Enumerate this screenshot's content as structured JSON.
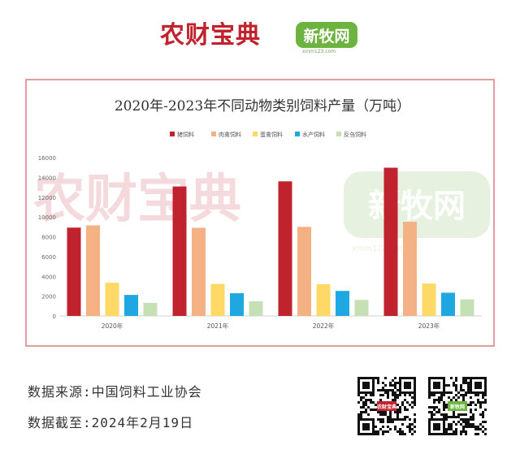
{
  "header": {
    "brand_left": "农财宝典",
    "brand_right": "新牧网",
    "brand_right_url": "xinm123.com"
  },
  "colors": {
    "brand_red": "#c0222e",
    "brand_green": "#6cb33f",
    "frame": "#e39b9b"
  },
  "watermark": {
    "left": "农财宝典",
    "right": "新牧网",
    "url": "xinm123.com"
  },
  "chart_data": {
    "type": "bar",
    "title": "2020年-2023年不同动物类别饲料产量（万吨）",
    "categories": [
      "2020年",
      "2021年",
      "2022年",
      "2023年"
    ],
    "series": [
      {
        "name": "猪饲料",
        "color": "#c0222e",
        "values": [
          8923,
          13077,
          13597,
          14975
        ]
      },
      {
        "name": "肉禽饲料",
        "color": "#f4b183",
        "values": [
          9150,
          8910,
          9000,
          9510
        ]
      },
      {
        "name": "蛋禽饲料",
        "color": "#ffd966",
        "values": [
          3352,
          3231,
          3211,
          3274
        ]
      },
      {
        "name": "水产饲料",
        "color": "#1ea7e1",
        "values": [
          2124,
          2293,
          2526,
          2344
        ]
      },
      {
        "name": "反刍饲料",
        "color": "#c5e0b4",
        "values": [
          1320,
          1480,
          1617,
          1671
        ]
      }
    ],
    "ylim": [
      0,
      16000
    ],
    "yticks": [
      "0",
      "2000",
      "4000",
      "6000",
      "8000",
      "10000",
      "12000",
      "14000",
      "16000"
    ],
    "grid": false,
    "legend_position": "top"
  },
  "footer": {
    "source": "数据来源:中国饲料工业协会",
    "date": "数据截至:2024年2月19日"
  },
  "qr_codes": [
    {
      "name": "qr-nongcai",
      "label": "农财宝典"
    },
    {
      "name": "qr-xinmu",
      "label": "新牧网"
    }
  ]
}
